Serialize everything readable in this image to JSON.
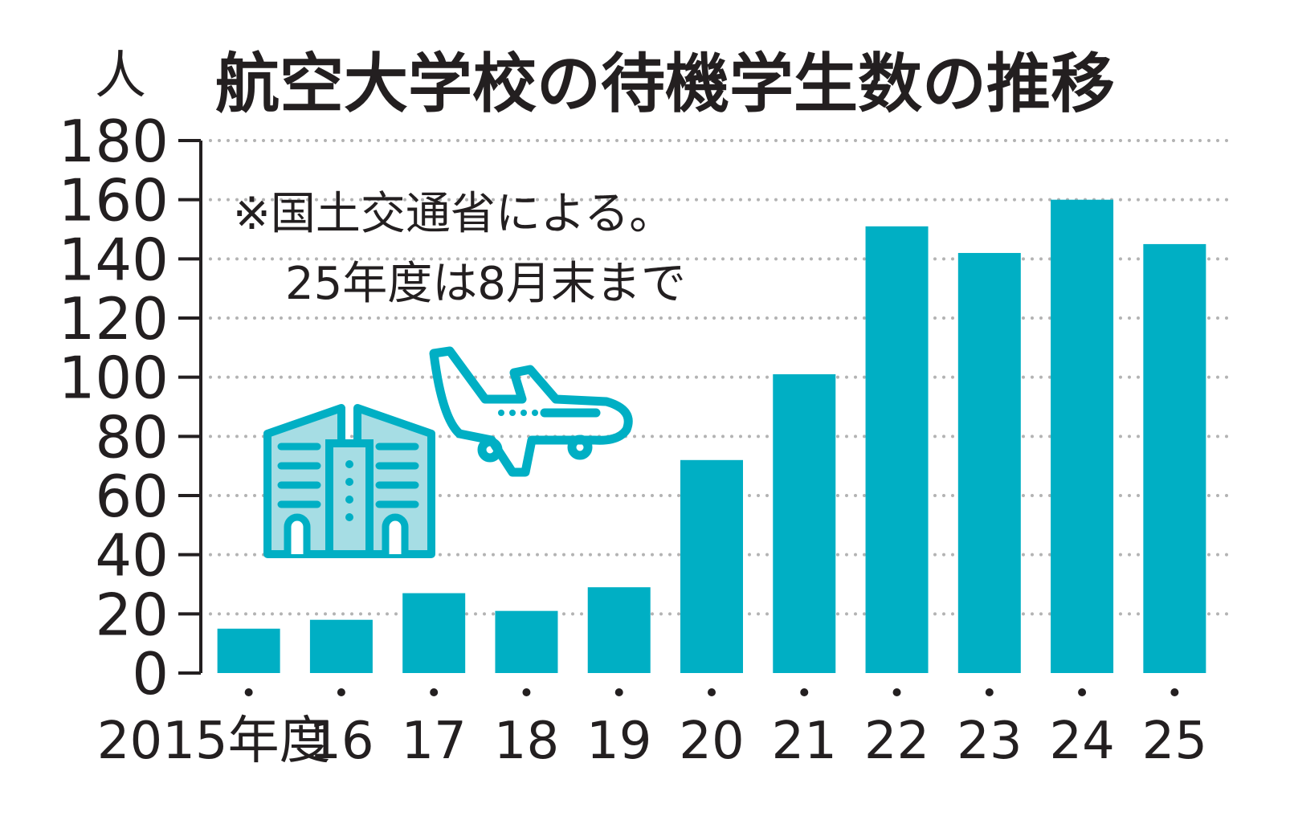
{
  "chart_data": {
    "type": "bar",
    "title": "航空大学校の待機学生数の推移",
    "ylabel": "人",
    "xlabel": "",
    "note_lines": [
      "※国土交通省による。",
      "25年度は8月末まで"
    ],
    "categories": [
      "2015年度",
      "16",
      "17",
      "18",
      "19",
      "20",
      "21",
      "22",
      "23",
      "24",
      "25"
    ],
    "values": [
      15,
      18,
      27,
      21,
      29,
      72,
      101,
      151,
      142,
      160,
      145
    ],
    "ylim": [
      0,
      180
    ],
    "yticks": [
      0,
      20,
      40,
      60,
      80,
      100,
      120,
      140,
      160,
      180
    ],
    "grid": true,
    "bar_color": "#00afc4",
    "grid_color": "#b3b3b3",
    "text_color": "#231f20"
  },
  "illustration": {
    "building": "building-icon",
    "airplane": "airplane-icon"
  }
}
